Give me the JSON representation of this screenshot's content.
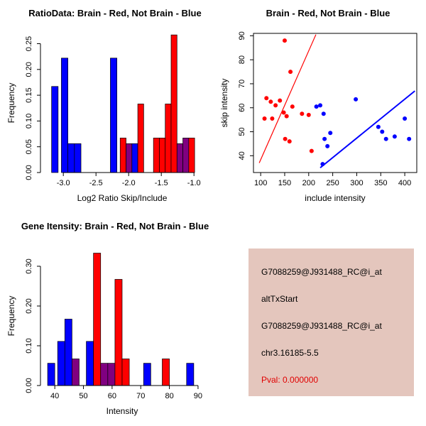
{
  "figure": {
    "background": "#FFFFFF"
  },
  "colors": {
    "red": "#FF0000",
    "blue": "#0000FF",
    "purple": "#800080",
    "axis": "#000000",
    "pval": "#E00000",
    "info_box_bg": "#E4C6BD"
  },
  "chart_data": [
    {
      "type": "bar",
      "subtype": "overlaid-histogram",
      "title": "RatioData: Brain - Red, Not Brain - Blue",
      "xlabel": "Log2 Ratio Skip/Include",
      "ylabel": "Frequency",
      "xlim": [
        -3.35,
        -0.85
      ],
      "ylim": [
        0,
        0.27
      ],
      "xticks": [
        -3,
        -2.5,
        -2,
        -1.5,
        -1
      ],
      "xtick_labels": [
        "-3.0",
        "-2.5",
        "-2.0",
        "-1.5",
        "-1.0"
      ],
      "yticks": [
        0,
        0.05,
        0.1,
        0.15,
        0.2,
        0.25
      ],
      "ytick_labels": [
        "0.00",
        "0.05",
        "0.10",
        "0.15",
        "0.20",
        "0.25"
      ],
      "legend_note": "Brain = red, Not Brain = blue, overlap = purple",
      "bars": [
        {
          "x0": -3.18,
          "w": 0.1,
          "h": 0.167,
          "color": "blue"
        },
        {
          "x0": -3.03,
          "w": 0.1,
          "h": 0.222,
          "color": "blue"
        },
        {
          "x0": -2.93,
          "w": 0.1,
          "h": 0.056,
          "color": "blue"
        },
        {
          "x0": -2.83,
          "w": 0.1,
          "h": 0.056,
          "color": "blue"
        },
        {
          "x0": -2.28,
          "w": 0.1,
          "h": 0.222,
          "color": "blue"
        },
        {
          "x0": -2.13,
          "w": 0.09,
          "h": 0.067,
          "color": "red"
        },
        {
          "x0": -2.04,
          "w": 0.09,
          "h": 0.056,
          "color": "purple"
        },
        {
          "x0": -1.95,
          "w": 0.09,
          "h": 0.056,
          "color": "blue"
        },
        {
          "x0": -1.86,
          "w": 0.09,
          "h": 0.133,
          "color": "red"
        },
        {
          "x0": -1.62,
          "w": 0.09,
          "h": 0.067,
          "color": "red"
        },
        {
          "x0": -1.53,
          "w": 0.09,
          "h": 0.067,
          "color": "red"
        },
        {
          "x0": -1.44,
          "w": 0.09,
          "h": 0.133,
          "color": "red"
        },
        {
          "x0": -1.35,
          "w": 0.09,
          "h": 0.267,
          "color": "red"
        },
        {
          "x0": -1.26,
          "w": 0.09,
          "h": 0.056,
          "color": "purple"
        },
        {
          "x0": -1.17,
          "w": 0.09,
          "h": 0.067,
          "color": "purple"
        },
        {
          "x0": -1.08,
          "w": 0.09,
          "h": 0.067,
          "color": "red"
        }
      ]
    },
    {
      "type": "scatter",
      "title": "Brain - Red, Not Brain - Blue",
      "xlabel": "include intensity",
      "ylabel": "skip intensity",
      "xlim": [
        85,
        425
      ],
      "ylim": [
        33,
        91
      ],
      "xticks": [
        100,
        150,
        200,
        250,
        300,
        350,
        400
      ],
      "xtick_labels": [
        "100",
        "150",
        "200",
        "250",
        "300",
        "350",
        "400"
      ],
      "yticks": [
        40,
        50,
        60,
        70,
        80,
        90
      ],
      "ytick_labels": [
        "40",
        "50",
        "60",
        "70",
        "80",
        "90"
      ],
      "box": true,
      "series": [
        {
          "name": "Brain",
          "color": "red",
          "points": [
            [
              150,
              88
            ],
            [
              162,
              75
            ],
            [
              112,
              64
            ],
            [
              121,
              62.5
            ],
            [
              131,
              61
            ],
            [
              140,
              63
            ],
            [
              108,
              55.5
            ],
            [
              124,
              55.5
            ],
            [
              148,
              58
            ],
            [
              154,
              56.5
            ],
            [
              166,
              60.5
            ],
            [
              186,
              57.5
            ],
            [
              200,
              57
            ],
            [
              151,
              47
            ],
            [
              160,
              46
            ],
            [
              206,
              42
            ]
          ]
        },
        {
          "name": "Not Brain",
          "color": "blue",
          "points": [
            [
              216,
              60.5
            ],
            [
              224,
              61
            ],
            [
              231,
              57.5
            ],
            [
              233,
              47
            ],
            [
              239,
              44
            ],
            [
              245,
              49.5
            ],
            [
              298,
              63.5
            ],
            [
              345,
              52
            ],
            [
              353,
              50
            ],
            [
              361,
              47
            ],
            [
              379,
              48
            ],
            [
              400,
              55.5
            ],
            [
              409,
              47
            ],
            [
              229,
              36.5
            ]
          ]
        }
      ],
      "lines": [
        {
          "color": "red",
          "x1": 97,
          "y1": 37,
          "x2": 215,
          "y2": 90.5,
          "width": 1.2
        },
        {
          "color": "blue",
          "x1": 224,
          "y1": 35,
          "x2": 421,
          "y2": 67,
          "width": 2
        }
      ]
    },
    {
      "type": "bar",
      "subtype": "overlaid-histogram",
      "title": "Gene Itensity: Brain - Red, Not Brain - Blue",
      "xlabel": "Intensity",
      "ylabel": "Frequency",
      "xlim": [
        35,
        92
      ],
      "ylim": [
        0,
        0.35
      ],
      "xticks": [
        40,
        50,
        60,
        70,
        80,
        90
      ],
      "xtick_labels": [
        "40",
        "50",
        "60",
        "70",
        "80",
        "90"
      ],
      "yticks": [
        0,
        0.1,
        0.2,
        0.3
      ],
      "ytick_labels": [
        "0.00",
        "0.10",
        "0.20",
        "0.30"
      ],
      "legend_note": "Brain = red, Not Brain = blue, overlap = purple",
      "bars": [
        {
          "x0": 37.5,
          "w": 2.5,
          "h": 0.056,
          "color": "blue"
        },
        {
          "x0": 41,
          "w": 2.5,
          "h": 0.111,
          "color": "blue"
        },
        {
          "x0": 43.5,
          "w": 2.5,
          "h": 0.167,
          "color": "blue"
        },
        {
          "x0": 46,
          "w": 2.5,
          "h": 0.067,
          "color": "purple"
        },
        {
          "x0": 51,
          "w": 2.5,
          "h": 0.111,
          "color": "blue"
        },
        {
          "x0": 53.5,
          "w": 2.5,
          "h": 0.333,
          "color": "red"
        },
        {
          "x0": 56,
          "w": 2.5,
          "h": 0.056,
          "color": "purple"
        },
        {
          "x0": 58.5,
          "w": 2.5,
          "h": 0.056,
          "color": "purple"
        },
        {
          "x0": 61,
          "w": 2.5,
          "h": 0.267,
          "color": "red"
        },
        {
          "x0": 63.5,
          "w": 2.5,
          "h": 0.067,
          "color": "red"
        },
        {
          "x0": 71,
          "w": 2.5,
          "h": 0.056,
          "color": "blue"
        },
        {
          "x0": 77.5,
          "w": 2.5,
          "h": 0.067,
          "color": "red"
        },
        {
          "x0": 86,
          "w": 2.5,
          "h": 0.056,
          "color": "blue"
        }
      ]
    },
    {
      "type": "table",
      "panel": "gene-info",
      "background": "#E4C6BD",
      "lines": [
        {
          "text": "G7088259@J931488_RC@i_at",
          "color": "#000000"
        },
        {
          "text": "altTxStart",
          "color": "#000000"
        },
        {
          "text": "G7088259@J931488_RC@i_at",
          "color": "#000000"
        },
        {
          "text": "chr3.16185-5.5",
          "color": "#000000"
        },
        {
          "text": "Pval: 0.000000",
          "color": "#E00000"
        }
      ]
    }
  ]
}
